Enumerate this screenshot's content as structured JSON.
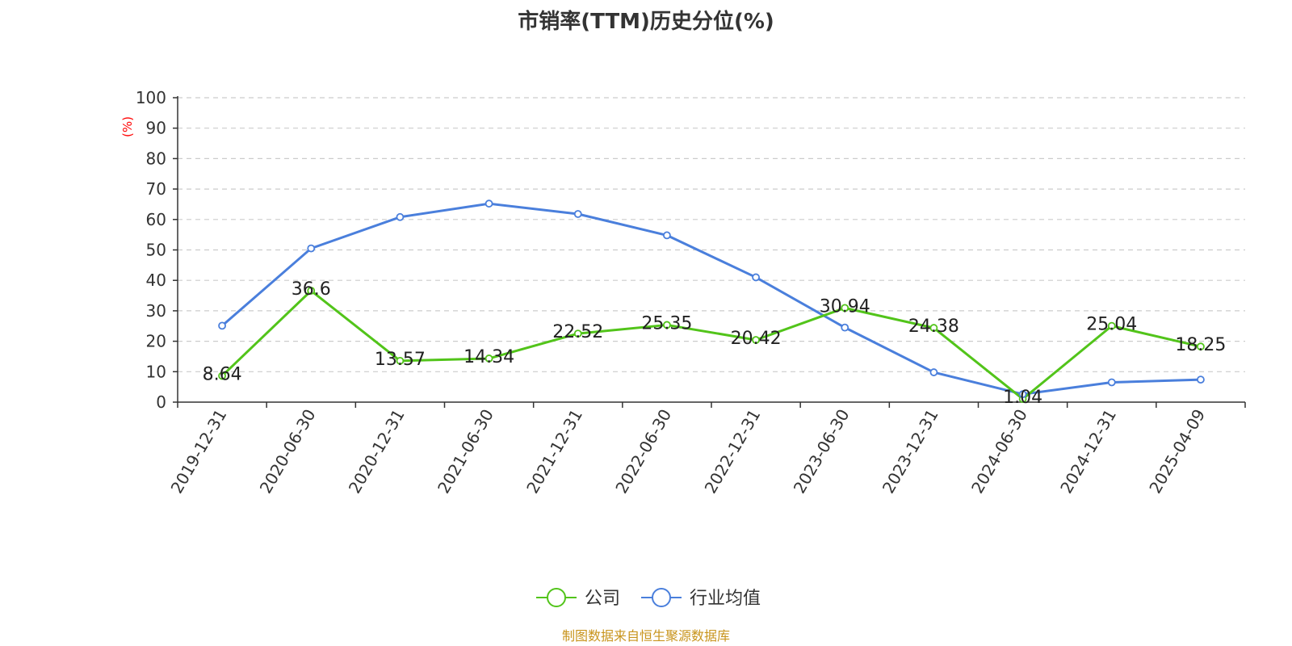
{
  "title": "市销率(TTM)历史分位(%)",
  "source": "制图数据来自恒生聚源数据库",
  "chart_data": {
    "type": "line",
    "ylabel": "(%)",
    "ylim": [
      0,
      100
    ],
    "yticks": [
      0,
      10,
      20,
      30,
      40,
      50,
      60,
      70,
      80,
      90,
      100
    ],
    "categories": [
      "2019-12-31",
      "2020-06-30",
      "2020-12-31",
      "2021-06-30",
      "2021-12-31",
      "2022-06-30",
      "2022-12-31",
      "2023-06-30",
      "2023-12-31",
      "2024-06-30",
      "2024-12-31",
      "2025-04-09"
    ],
    "grid": true,
    "legend_position": "bottom-center",
    "series": [
      {
        "name": "公司",
        "color": "#52c41a",
        "values": [
          8.64,
          36.6,
          13.57,
          14.34,
          22.52,
          25.35,
          20.42,
          30.94,
          24.38,
          1.04,
          25.04,
          18.25
        ],
        "labels": [
          "8.64",
          "36.6",
          "13.57",
          "14.34",
          "22.52",
          "25.35",
          "20.42",
          "30.94",
          "24.38",
          "1.04",
          "25.04",
          "18.25"
        ]
      },
      {
        "name": "行业均值",
        "color": "#4a7fdc",
        "values": [
          25.1,
          50.5,
          60.8,
          65.2,
          61.8,
          54.8,
          41.0,
          24.5,
          9.8,
          2.6,
          6.5,
          7.4
        ]
      }
    ]
  }
}
